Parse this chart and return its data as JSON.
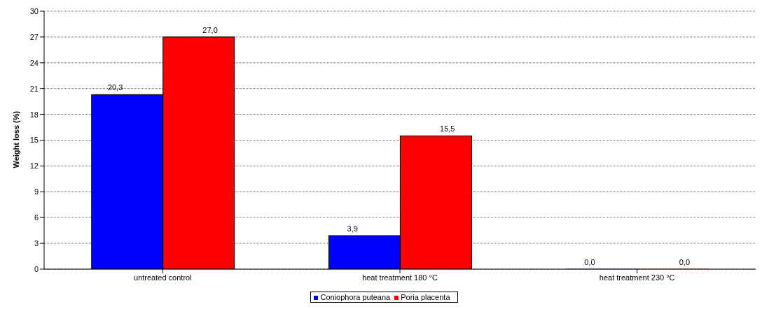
{
  "chart_data": {
    "type": "bar",
    "ylabel": "Weight loss (%)",
    "categories": [
      "untreated control",
      "heat treatment 180 °C",
      "heat treatment 230 °C"
    ],
    "series": [
      {
        "name": "Coniophora puteana",
        "color": "#0000ff",
        "values": [
          20.3,
          3.9,
          0.0
        ],
        "value_labels": [
          "20,3",
          "3,9",
          "0,0"
        ]
      },
      {
        "name": "Poria placenta",
        "color": "#ff0000",
        "values": [
          27.0,
          15.5,
          0.0
        ],
        "value_labels": [
          "27,0",
          "15,5",
          "0,0"
        ]
      }
    ],
    "ylim": [
      0,
      30
    ],
    "yticks": [
      0,
      3,
      6,
      9,
      12,
      15,
      18,
      21,
      24,
      27,
      30
    ],
    "grid": "y",
    "legend": "bottom"
  }
}
